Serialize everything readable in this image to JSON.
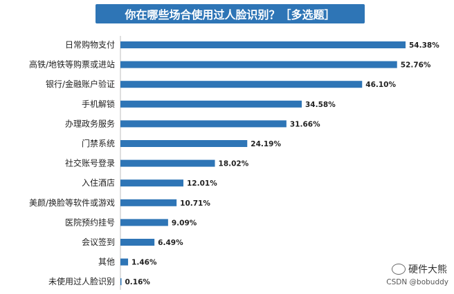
{
  "title": "你在哪些场合使用过人脸识别？［多选题］",
  "chart_data": {
    "type": "bar",
    "orientation": "horizontal",
    "title": "你在哪些场合使用过人脸识别？［多选题］",
    "xlabel": "",
    "ylabel": "",
    "xlim": [
      0,
      60
    ],
    "grid": false,
    "legend": "none",
    "bar_color": "#2e75b6",
    "categories": [
      "日常购物支付",
      "高铁/地铁等购票或进站",
      "银行/金融账户验证",
      "手机解锁",
      "办理政务服务",
      "门禁系统",
      "社交账号登录",
      "入住酒店",
      "美颜/换脸等软件或游戏",
      "医院预约挂号",
      "会议签到",
      "其他",
      "未使用过人脸识别"
    ],
    "values": [
      54.38,
      52.76,
      46.1,
      34.58,
      31.66,
      24.19,
      18.02,
      12.01,
      10.71,
      9.09,
      6.49,
      1.46,
      0.16
    ],
    "value_labels": [
      "54.38%",
      "52.76%",
      "46.10%",
      "34.58%",
      "31.66%",
      "24.19%",
      "18.02%",
      "12.01%",
      "10.71%",
      "9.09%",
      "6.49%",
      "1.46%",
      "0.16%"
    ]
  },
  "watermark": {
    "wechat_text": "硬件大熊",
    "csdn_text": "CSDN @bobuddy",
    "icon": "wechat-icon"
  }
}
